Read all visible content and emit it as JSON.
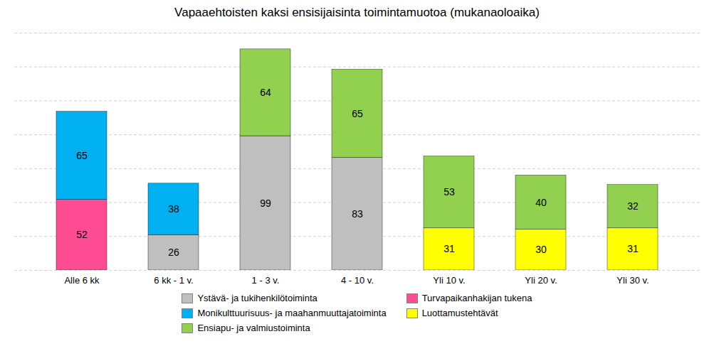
{
  "chart_data": {
    "type": "bar",
    "stacked": true,
    "title": "Vapaaehtoisten kaksi ensisijaisinta toimintamuotoa (mukanaoloaika)",
    "categories": [
      "Alle 6 kk",
      "6 kk - 1 v.",
      "1 - 3 v.",
      "4 - 10 v.",
      "Yli 10 v.",
      "Yli 20 v.",
      "Yli 30 v."
    ],
    "series": [
      {
        "name": "Ystävä- ja tukihenkilötoiminta",
        "color": "#bfbfbf",
        "values": [
          0,
          26,
          99,
          83,
          0,
          0,
          0
        ]
      },
      {
        "name": "Turvapaikanhakijan tukena",
        "color": "#ff4d94",
        "values": [
          52,
          0,
          0,
          0,
          0,
          0,
          0
        ]
      },
      {
        "name": "Monikulttuurisuus- ja maahanmuuttajatoiminta",
        "color": "#00b0f0",
        "values": [
          65,
          38,
          0,
          0,
          0,
          0,
          0
        ]
      },
      {
        "name": "Luottamustehtävät",
        "color": "#ffff00",
        "values": [
          0,
          0,
          0,
          0,
          31,
          30,
          31
        ]
      },
      {
        "name": "Ensiapu- ja valmiustoiminta",
        "color": "#92d050",
        "values": [
          0,
          0,
          64,
          65,
          53,
          40,
          32
        ]
      }
    ],
    "ylim": [
      0,
      175
    ],
    "yticks": [
      0,
      25,
      50,
      75,
      100,
      125,
      150,
      175
    ],
    "grid": true,
    "data_labels": true,
    "tick_labels": "x",
    "legend": "bottom"
  }
}
